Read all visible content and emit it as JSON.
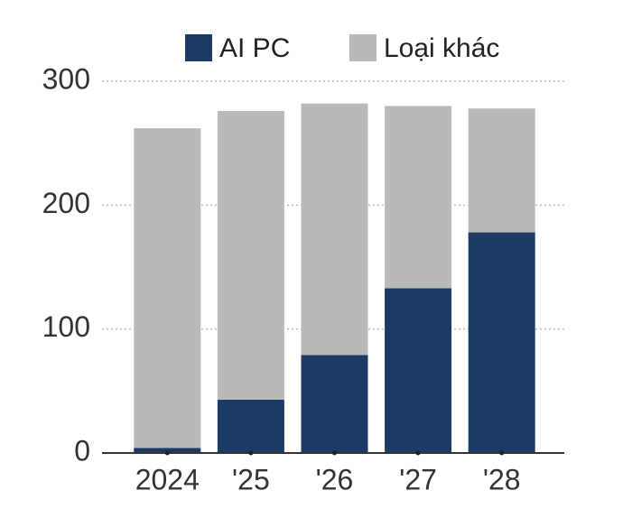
{
  "chart_data": {
    "type": "bar",
    "stacked": true,
    "categories": [
      "2024",
      "'25",
      "'26",
      "'27",
      "'28"
    ],
    "series": [
      {
        "name": "AI PC",
        "color": "#1b3a66",
        "values": [
          4,
          43,
          79,
          133,
          178
        ]
      },
      {
        "name": "Loại khác",
        "color": "#b9b9b9",
        "values": [
          258,
          233,
          203,
          147,
          100
        ]
      }
    ],
    "ylim": [
      0,
      300
    ],
    "yticks": [
      0,
      100,
      200,
      300
    ],
    "grid": true,
    "legend": "top"
  }
}
